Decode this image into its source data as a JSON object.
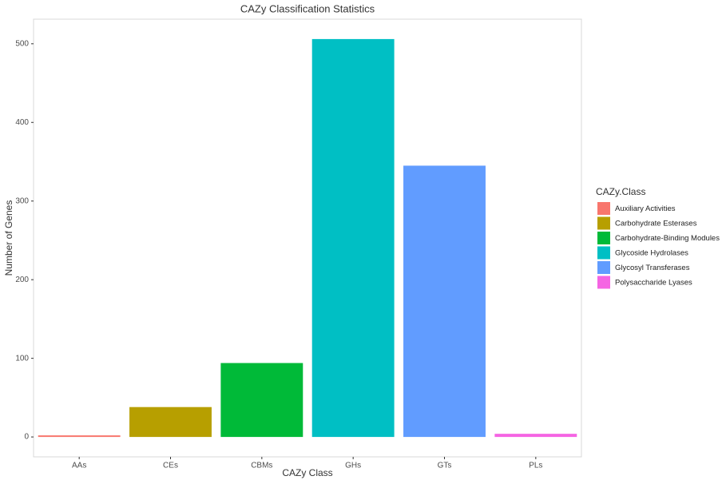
{
  "chart_data": {
    "type": "bar",
    "title": "CAZy Classification Statistics",
    "x_label": "CAZy Class",
    "y_label": "Number of Genes",
    "categories": [
      "AAs",
      "CEs",
      "CBMs",
      "GHs",
      "GTs",
      "PLs"
    ],
    "values": [
      2,
      38,
      94,
      506,
      345,
      4
    ],
    "colors": [
      "#F8766D",
      "#B79F00",
      "#00BA38",
      "#00BFC4",
      "#619CFF",
      "#F564E3"
    ],
    "ylim": [
      -25.3,
      531.3
    ],
    "yticks": [
      0,
      100,
      200,
      300,
      400,
      500
    ],
    "grid": false,
    "legend": {
      "title": "CAZy.Class",
      "position": "right",
      "labels": [
        "Auxiliary Activities",
        "Carbohydrate Esterases",
        "Carbohydrate-Binding Modules",
        "Glycoside Hydrolases",
        "Glycosyl Transferases",
        "Polysaccharide Lyases"
      ]
    }
  }
}
